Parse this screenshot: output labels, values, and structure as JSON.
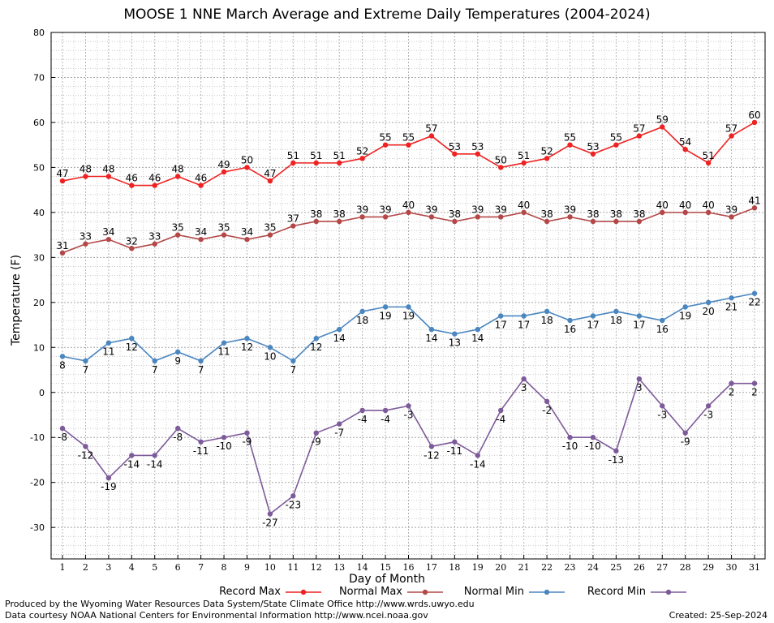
{
  "chart_data": {
    "type": "line",
    "title": "MOOSE 1 NNE March Average and Extreme Daily Temperatures (2004-2024)",
    "xlabel": "Day of Month",
    "ylabel": "Temperature (F)",
    "x": [
      1,
      2,
      3,
      4,
      5,
      6,
      7,
      8,
      9,
      10,
      11,
      12,
      13,
      14,
      15,
      16,
      17,
      18,
      19,
      20,
      21,
      22,
      23,
      24,
      25,
      26,
      27,
      28,
      29,
      30,
      31
    ],
    "ylim": [
      -37,
      80
    ],
    "yticks": [
      80,
      70,
      60,
      50,
      40,
      30,
      20,
      10,
      0,
      -10,
      -20,
      -30
    ],
    "grid": true,
    "legend_position": "bottom",
    "series": [
      {
        "name": "Record Max",
        "color": "#ee2222",
        "values": [
          47,
          48,
          48,
          46,
          46,
          48,
          46,
          49,
          50,
          47,
          51,
          51,
          51,
          52,
          55,
          55,
          57,
          53,
          53,
          50,
          51,
          52,
          55,
          53,
          55,
          57,
          59,
          54,
          51,
          57,
          60
        ]
      },
      {
        "name": "Normal Max",
        "color": "#b44848",
        "values": [
          31,
          33,
          34,
          32,
          33,
          35,
          34,
          35,
          34,
          35,
          37,
          38,
          38,
          39,
          39,
          40,
          39,
          38,
          39,
          39,
          40,
          38,
          39,
          38,
          38,
          38,
          40,
          40,
          40,
          39,
          41
        ]
      },
      {
        "name": "Normal Min",
        "color": "#4a86c0",
        "values": [
          8,
          7,
          11,
          12,
          7,
          9,
          7,
          11,
          12,
          10,
          7,
          12,
          14,
          18,
          19,
          19,
          14,
          13,
          14,
          17,
          17,
          18,
          16,
          17,
          18,
          17,
          16,
          19,
          20,
          21,
          22
        ]
      },
      {
        "name": "Record Min",
        "color": "#7d5b9a",
        "values": [
          -8,
          -12,
          -19,
          -14,
          -14,
          -8,
          -11,
          -10,
          -9,
          -27,
          -23,
          -9,
          -7,
          -4,
          -4,
          -3,
          -12,
          -11,
          -14,
          -4,
          3,
          -2,
          -10,
          -10,
          -13,
          3,
          -3,
          -9,
          -3,
          2,
          2
        ]
      }
    ]
  },
  "footer": {
    "credit_line_1": "Produced by the Wyoming Water Resources Data System/State Climate Office http://www.wrds.uwyo.edu",
    "credit_line_2": "Data courtesy NOAA National Centers for Environmental Information http://www.ncei.noaa.gov",
    "created": "Created:  25-Sep-2024"
  }
}
